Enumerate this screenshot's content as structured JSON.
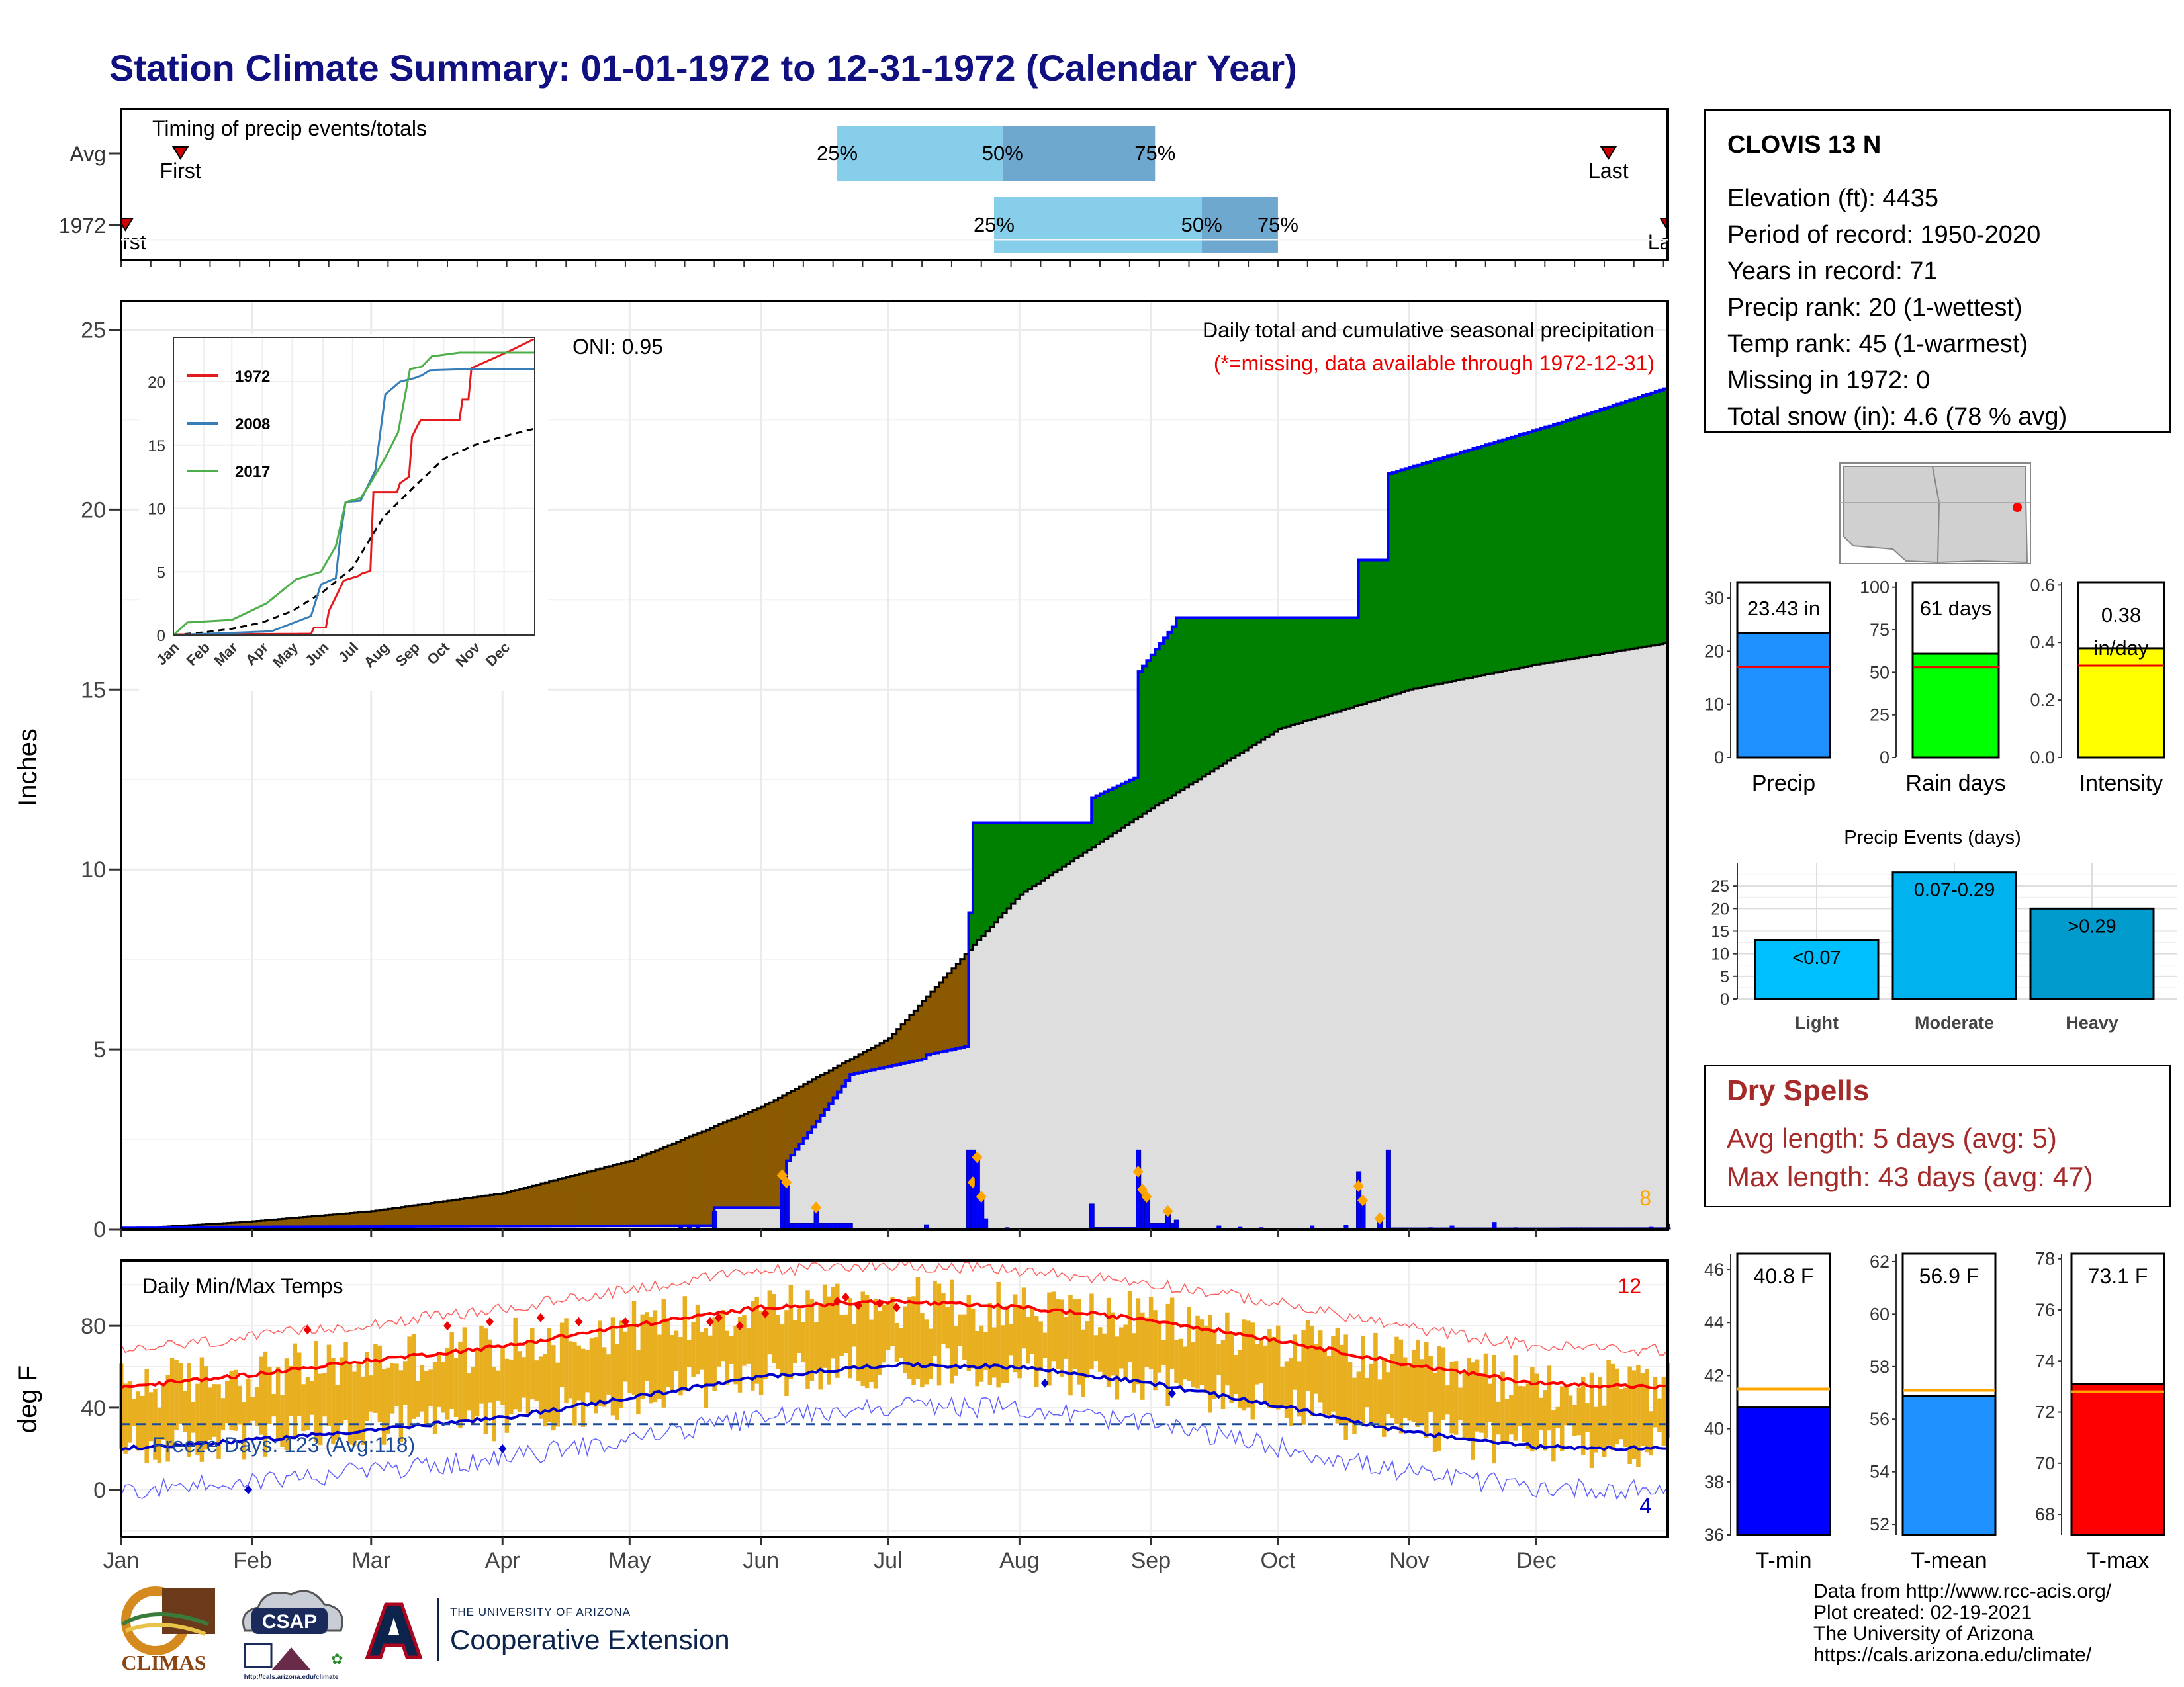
{
  "title": "Station Climate Summary: 01-01-1972 to 12-31-1972 (Calendar Year)",
  "timing": {
    "label": "Timing of precip events/totals",
    "rows": [
      {
        "name": "Avg",
        "first_day": 15,
        "last_day": 352,
        "q25": 170,
        "q50": 209,
        "q75": 245
      },
      {
        "name": "1972",
        "first_day": 2,
        "last_day": 366,
        "q25": 207,
        "q50": 256,
        "q75": 274
      }
    ],
    "first_label": "First",
    "last_label": "Last",
    "q25_label": "25%",
    "q50_label": "50%",
    "q75_label": "75%"
  },
  "station": {
    "name": "CLOVIS 13 N",
    "lines": [
      "Elevation (ft): 4435",
      "Period of record: 1950-2020",
      "Years in record: 71",
      "Precip rank: 20 (1-wettest)",
      "Temp rank: 45 (1-warmest)",
      "Missing in 1972: 0",
      "Total snow (in): 4.6 (78 % avg)"
    ]
  },
  "precip_summary": {
    "panels": [
      {
        "label": "Precip",
        "value": 23.43,
        "value_label": "23.43 in",
        "avg": 17,
        "ymax": 33,
        "ticks": [
          0,
          10,
          20,
          30
        ],
        "color": "#1e90ff"
      },
      {
        "label": "Rain days",
        "value": 61,
        "value_label": "61 days",
        "avg": 53,
        "ymax": 103,
        "ticks": [
          0,
          25,
          50,
          75,
          100
        ],
        "color": "#00ff00"
      },
      {
        "label": "Intensity",
        "value": 0.38,
        "value_label": "0.38 in/day",
        "avg": 0.32,
        "ymax": 0.61,
        "ticks": [
          0.0,
          0.2,
          0.4,
          0.6
        ],
        "color": "#ffff00"
      }
    ]
  },
  "precip_events": {
    "title": "Precip Events (days)",
    "ticks": [
      0,
      5,
      10,
      15,
      20,
      25
    ],
    "bars": [
      {
        "label": "Light",
        "value": 13,
        "value_label": "<0.07",
        "color": "#00bfff"
      },
      {
        "label": "Moderate",
        "value": 28,
        "value_label": "0.07-0.29",
        "color": "#00b2ee"
      },
      {
        "label": "Heavy",
        "value": 20,
        "value_label": ">0.29",
        "color": "#009acd"
      }
    ]
  },
  "dry_spells": {
    "title": "Dry Spells",
    "lines": [
      "Avg length: 5 days (avg: 5)",
      "Max length: 43 days (avg: 47)"
    ]
  },
  "temp_summary": {
    "panels": [
      {
        "label": "T-min",
        "value": 40.8,
        "value_label": "40.8 F",
        "avg": 41.5,
        "ymin": 36,
        "ymax": 46.6,
        "ticks": [
          36,
          38,
          40,
          42,
          44,
          46
        ],
        "color": "#0000ff"
      },
      {
        "label": "T-mean",
        "value": 56.9,
        "value_label": "56.9 F",
        "avg": 57.1,
        "ymin": 51.6,
        "ymax": 62.3,
        "ticks": [
          52,
          54,
          56,
          58,
          60,
          62
        ],
        "color": "#1e90ff"
      },
      {
        "label": "T-max",
        "value": 73.1,
        "value_label": "73.1 F",
        "avg": 72.8,
        "ymin": 67.2,
        "ymax": 78.2,
        "ticks": [
          68,
          70,
          72,
          74,
          76,
          78
        ],
        "color": "#ff0000"
      }
    ]
  },
  "main_precip": {
    "ylabel": "Inches",
    "ylim": [
      0,
      25.8
    ],
    "yticks": [
      0,
      5,
      10,
      15,
      20,
      25
    ],
    "legend_title": "Daily total and cumulative seasonal precipitation",
    "missing_note": "(*=missing, data available through 1972-12-31)",
    "oni": "ONI: 0.95",
    "count_label": "8"
  },
  "inset": {
    "ylim": [
      0,
      23.5
    ],
    "yticks": [
      0,
      5,
      10,
      15,
      20
    ],
    "months": [
      "Jan",
      "Feb",
      "Mar",
      "Apr",
      "May",
      "Jun",
      "Jul",
      "Aug",
      "Sep",
      "Oct",
      "Nov",
      "Dec"
    ],
    "legend": [
      {
        "name": "1972",
        "color": "#e41a1c"
      },
      {
        "name": "2008",
        "color": "#377eb8"
      },
      {
        "name": "2017",
        "color": "#4daf4a"
      }
    ]
  },
  "temps": {
    "ylabel": "deg F",
    "label": "Daily Min/Max Temps",
    "ylim": [
      -23,
      112
    ],
    "yticks": [
      0,
      40,
      80
    ],
    "freeze_label": "Freeze Days: 123 (Avg:118)",
    "hot_count": "12",
    "cold_count": "4"
  },
  "months": [
    "Jan",
    "Feb",
    "Mar",
    "Apr",
    "May",
    "Jun",
    "Jul",
    "Aug",
    "Sep",
    "Oct",
    "Nov",
    "Dec"
  ],
  "chart_data": [
    {
      "type": "area",
      "title": "Daily total and cumulative seasonal precipitation",
      "ylabel": "Inches",
      "ylim": [
        0,
        25.8
      ],
      "x_unit": "day of year",
      "cumulative_1972": [
        [
          1,
          0
        ],
        [
          60,
          0.05
        ],
        [
          140,
          0.1
        ],
        [
          141,
          0.6
        ],
        [
          157,
          0.6
        ],
        [
          158,
          1.9
        ],
        [
          165,
          3.0
        ],
        [
          173,
          4.3
        ],
        [
          200,
          5.0
        ],
        [
          201,
          8.8
        ],
        [
          202,
          11.3
        ],
        [
          229,
          11.3
        ],
        [
          230,
          12.0
        ],
        [
          240,
          12.6
        ],
        [
          241,
          15.5
        ],
        [
          245,
          16.2
        ],
        [
          250,
          16.9
        ],
        [
          268,
          17.0
        ],
        [
          293,
          18.6
        ],
        [
          300,
          21.0
        ],
        [
          320,
          21.5
        ],
        [
          340,
          22.4
        ],
        [
          366,
          23.4
        ]
      ],
      "cumulative_avg": [
        [
          1,
          0
        ],
        [
          30,
          0.2
        ],
        [
          60,
          0.5
        ],
        [
          91,
          1.0
        ],
        [
          121,
          1.9
        ],
        [
          152,
          3.4
        ],
        [
          182,
          5.3
        ],
        [
          202,
          7.9
        ],
        [
          213,
          9.3
        ],
        [
          244,
          11.7
        ],
        [
          274,
          13.9
        ],
        [
          305,
          15.0
        ],
        [
          335,
          15.7
        ],
        [
          366,
          16.3
        ]
      ],
      "daily_heavy_days": [
        [
          157,
          1.5
        ],
        [
          158,
          1.3
        ],
        [
          165,
          0.6
        ],
        [
          202,
          1.3
        ],
        [
          203,
          2.0
        ],
        [
          204,
          0.9
        ],
        [
          241,
          1.6
        ],
        [
          242,
          1.1
        ],
        [
          243,
          0.9
        ],
        [
          248,
          0.5
        ],
        [
          293,
          1.2
        ],
        [
          294,
          0.8
        ],
        [
          298,
          0.3
        ]
      ]
    },
    {
      "type": "line",
      "title": "Daily Min/Max Temps",
      "ylabel": "deg F",
      "ylim": [
        -23,
        112
      ],
      "series": [
        {
          "name": "avg max",
          "x": [
            1,
            31,
            59,
            91,
            121,
            152,
            182,
            213,
            244,
            274,
            305,
            335,
            366
          ],
          "values": [
            50,
            56,
            63,
            70,
            80,
            89,
            92,
            89,
            83,
            73,
            61,
            52,
            50
          ]
        },
        {
          "name": "avg min",
          "x": [
            1,
            31,
            59,
            91,
            121,
            152,
            182,
            213,
            244,
            274,
            305,
            335,
            366
          ],
          "values": [
            20,
            24,
            29,
            35,
            45,
            55,
            61,
            60,
            52,
            41,
            28,
            21,
            20
          ]
        }
      ]
    },
    {
      "type": "bar",
      "categories": [
        "Precip",
        "Rain days",
        "Intensity"
      ],
      "values": [
        23.43,
        61,
        0.38
      ]
    },
    {
      "type": "bar",
      "title": "Precip Events (days)",
      "categories": [
        "Light",
        "Moderate",
        "Heavy"
      ],
      "values": [
        13,
        28,
        20
      ]
    },
    {
      "type": "bar",
      "categories": [
        "T-min",
        "T-mean",
        "T-max"
      ],
      "values": [
        40.8,
        56.9,
        73.1
      ]
    }
  ],
  "credits": [
    "Data from http://www.rcc-acis.org/",
    "Plot created: 02-19-2021",
    "The University of Arizona",
    "https://cals.arizona.edu/climate/"
  ],
  "logos": {
    "climas": "CLIMAS",
    "csap": "CSAP",
    "csap_url": "http://cals.arizona.edu/climate",
    "ua_small": "THE UNIVERSITY OF ARIZONA",
    "ua_big": "Cooperative Extension"
  }
}
